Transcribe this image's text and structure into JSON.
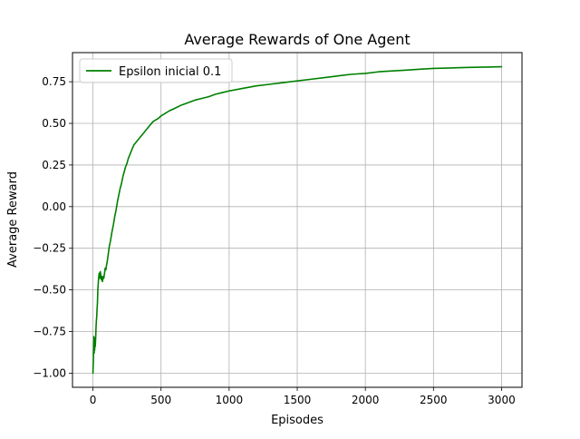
{
  "chart_data": {
    "type": "line",
    "title": "Average Rewards of One Agent",
    "xlabel": "Episodes",
    "ylabel": "Average Reward",
    "xlim": [
      -150,
      3150
    ],
    "ylim": [
      -1.085,
      0.925
    ],
    "xticks": [
      0,
      500,
      1000,
      1500,
      2000,
      2500,
      3000
    ],
    "xtick_labels": [
      "0",
      "500",
      "1000",
      "1500",
      "2000",
      "2500",
      "3000"
    ],
    "yticks": [
      -1.0,
      -0.75,
      -0.5,
      -0.25,
      0.0,
      0.25,
      0.5,
      0.75
    ],
    "ytick_labels": [
      "−1.00",
      "−0.75",
      "−0.50",
      "−0.25",
      "0.00",
      "0.25",
      "0.50",
      "0.75"
    ],
    "grid": true,
    "legend_position": "upper-left",
    "series": [
      {
        "name": "Epsilon inicial 0.1",
        "color": "#008000",
        "points": [
          [
            0,
            -1.0
          ],
          [
            3,
            -0.93
          ],
          [
            5,
            -0.85
          ],
          [
            7,
            -0.78
          ],
          [
            9,
            -0.88
          ],
          [
            11,
            -0.8
          ],
          [
            13,
            -0.86
          ],
          [
            15,
            -0.79
          ],
          [
            17,
            -0.84
          ],
          [
            19,
            -0.81
          ],
          [
            21,
            -0.77
          ],
          [
            23,
            -0.72
          ],
          [
            25,
            -0.69
          ],
          [
            28,
            -0.66
          ],
          [
            30,
            -0.62
          ],
          [
            33,
            -0.58
          ],
          [
            36,
            -0.5
          ],
          [
            40,
            -0.45
          ],
          [
            43,
            -0.42
          ],
          [
            46,
            -0.4
          ],
          [
            50,
            -0.43
          ],
          [
            54,
            -0.39
          ],
          [
            58,
            -0.41
          ],
          [
            62,
            -0.44
          ],
          [
            66,
            -0.42
          ],
          [
            70,
            -0.45
          ],
          [
            75,
            -0.42
          ],
          [
            80,
            -0.43
          ],
          [
            85,
            -0.4
          ],
          [
            90,
            -0.37
          ],
          [
            95,
            -0.38
          ],
          [
            100,
            -0.35
          ],
          [
            105,
            -0.33
          ],
          [
            110,
            -0.3
          ],
          [
            115,
            -0.27
          ],
          [
            120,
            -0.24
          ],
          [
            130,
            -0.2
          ],
          [
            140,
            -0.15
          ],
          [
            150,
            -0.11
          ],
          [
            160,
            -0.06
          ],
          [
            170,
            -0.02
          ],
          [
            180,
            0.03
          ],
          [
            190,
            0.07
          ],
          [
            200,
            0.11
          ],
          [
            210,
            0.14
          ],
          [
            220,
            0.18
          ],
          [
            230,
            0.21
          ],
          [
            240,
            0.24
          ],
          [
            250,
            0.26
          ],
          [
            260,
            0.29
          ],
          [
            270,
            0.31
          ],
          [
            280,
            0.33
          ],
          [
            290,
            0.35
          ],
          [
            300,
            0.37
          ],
          [
            320,
            0.39
          ],
          [
            340,
            0.41
          ],
          [
            360,
            0.43
          ],
          [
            380,
            0.45
          ],
          [
            400,
            0.47
          ],
          [
            420,
            0.49
          ],
          [
            440,
            0.51
          ],
          [
            460,
            0.52
          ],
          [
            480,
            0.53
          ],
          [
            500,
            0.545
          ],
          [
            530,
            0.56
          ],
          [
            560,
            0.575
          ],
          [
            600,
            0.59
          ],
          [
            650,
            0.61
          ],
          [
            700,
            0.625
          ],
          [
            750,
            0.64
          ],
          [
            800,
            0.65
          ],
          [
            850,
            0.66
          ],
          [
            900,
            0.675
          ],
          [
            950,
            0.685
          ],
          [
            1000,
            0.695
          ],
          [
            1100,
            0.71
          ],
          [
            1200,
            0.725
          ],
          [
            1300,
            0.735
          ],
          [
            1400,
            0.745
          ],
          [
            1500,
            0.755
          ],
          [
            1600,
            0.765
          ],
          [
            1700,
            0.775
          ],
          [
            1800,
            0.785
          ],
          [
            1900,
            0.795
          ],
          [
            2000,
            0.8
          ],
          [
            2100,
            0.81
          ],
          [
            2200,
            0.815
          ],
          [
            2300,
            0.82
          ],
          [
            2400,
            0.825
          ],
          [
            2500,
            0.83
          ],
          [
            2600,
            0.832
          ],
          [
            2700,
            0.835
          ],
          [
            2800,
            0.837
          ],
          [
            2900,
            0.838
          ],
          [
            3000,
            0.84
          ]
        ]
      }
    ]
  }
}
